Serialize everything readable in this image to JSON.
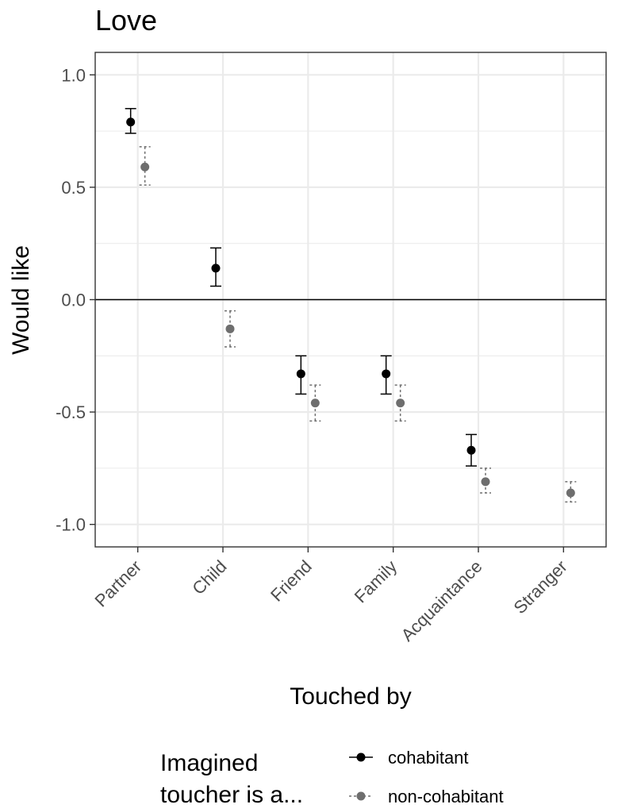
{
  "chart_data": {
    "type": "scatter",
    "title": "Love",
    "xlabel": "Touched by",
    "ylabel": "Would like",
    "categories": [
      "Partner",
      "Child",
      "Friend",
      "Family",
      "Acquaintance",
      "Stranger"
    ],
    "ylim": [
      -1.1,
      1.1
    ],
    "yticks": [
      1.0,
      0.5,
      0.0,
      -0.5,
      -1.0
    ],
    "ytick_labels": [
      "1.0",
      "0.5",
      "0.0",
      "-0.5",
      "-1.0"
    ],
    "grid": true,
    "reference_line_y": 0,
    "series": [
      {
        "name": "cohabitant",
        "color": "#000000",
        "errorbar_style": "solid",
        "values": [
          0.79,
          0.14,
          -0.33,
          -0.33,
          -0.67,
          null
        ],
        "lower": [
          0.74,
          0.06,
          -0.42,
          -0.42,
          -0.74,
          null
        ],
        "upper": [
          0.85,
          0.23,
          -0.25,
          -0.25,
          -0.6,
          null
        ]
      },
      {
        "name": "non-cohabitant",
        "color": "#6e6e6e",
        "errorbar_style": "dashed",
        "values": [
          0.59,
          -0.13,
          -0.46,
          -0.46,
          -0.81,
          -0.86
        ],
        "lower": [
          0.51,
          -0.21,
          -0.54,
          -0.54,
          -0.86,
          -0.9
        ],
        "upper": [
          0.68,
          -0.05,
          -0.38,
          -0.38,
          -0.75,
          -0.81
        ]
      }
    ],
    "legend": {
      "title_lines": [
        "Imagined",
        "toucher is a..."
      ],
      "position": "bottom"
    }
  }
}
